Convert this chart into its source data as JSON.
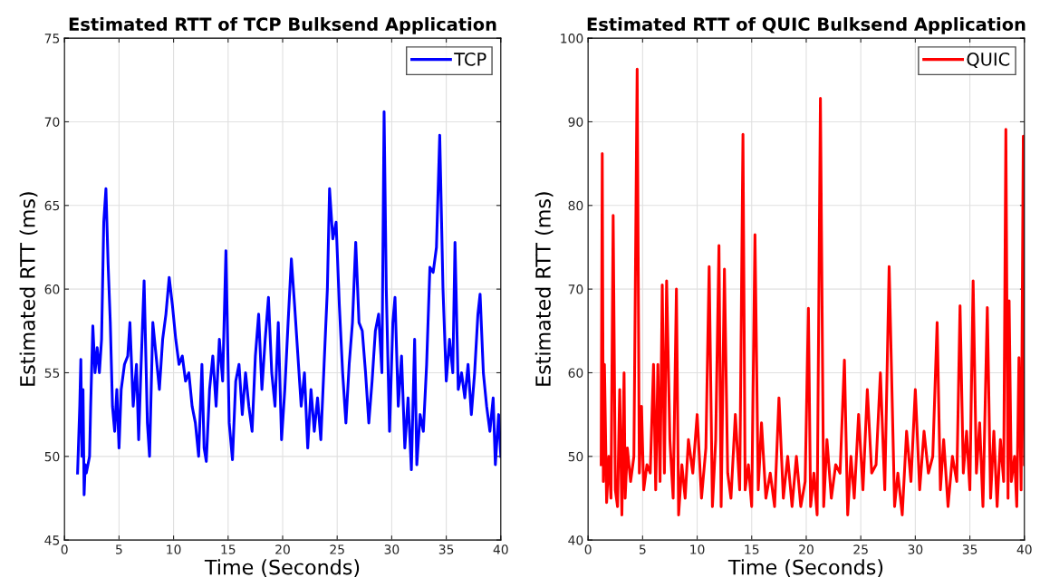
{
  "chart_data": [
    {
      "type": "line",
      "title": "Estimated RTT of TCP Bulksend Application",
      "xlabel": "Time (Seconds)",
      "ylabel": "Estimated RTT (ms)",
      "xlim": [
        0,
        40
      ],
      "xticks": [
        0,
        5,
        10,
        15,
        20,
        25,
        30,
        35,
        40
      ],
      "ylim": [
        45,
        75
      ],
      "yticks": [
        45,
        50,
        55,
        60,
        65,
        70,
        75
      ],
      "grid": true,
      "legend": "top right",
      "series": [
        {
          "name": "TCP",
          "color": "#0000ff",
          "x": [
            1.2,
            1.4,
            1.5,
            1.6,
            1.7,
            1.8,
            1.9,
            2.0,
            2.3,
            2.4,
            2.6,
            2.8,
            3.0,
            3.2,
            3.4,
            3.6,
            3.8,
            4.0,
            4.2,
            4.4,
            4.6,
            4.8,
            5.0,
            5.2,
            5.5,
            5.8,
            6.0,
            6.3,
            6.6,
            6.8,
            7.0,
            7.3,
            7.6,
            7.8,
            8.1,
            8.4,
            8.7,
            9.0,
            9.3,
            9.6,
            9.9,
            10.2,
            10.5,
            10.8,
            11.1,
            11.4,
            11.7,
            12.0,
            12.3,
            12.6,
            12.8,
            13.0,
            13.3,
            13.6,
            13.9,
            14.2,
            14.5,
            14.8,
            15.1,
            15.4,
            15.7,
            16.0,
            16.3,
            16.6,
            16.9,
            17.2,
            17.5,
            17.8,
            18.1,
            18.4,
            18.7,
            19.0,
            19.3,
            19.6,
            19.9,
            20.2,
            20.5,
            20.8,
            21.1,
            21.4,
            21.7,
            22.0,
            22.3,
            22.6,
            22.9,
            23.2,
            23.5,
            23.8,
            24.1,
            24.3,
            24.6,
            24.9,
            25.2,
            25.5,
            25.8,
            26.1,
            26.4,
            26.7,
            27.0,
            27.3,
            27.6,
            27.9,
            28.2,
            28.5,
            28.8,
            29.1,
            29.3,
            29.5,
            29.8,
            30.1,
            30.3,
            30.6,
            30.9,
            31.2,
            31.5,
            31.8,
            32.1,
            32.3,
            32.6,
            32.9,
            33.2,
            33.5,
            33.8,
            34.1,
            34.4,
            34.7,
            35.0,
            35.3,
            35.6,
            35.8,
            36.1,
            36.4,
            36.7,
            37.0,
            37.3,
            37.6,
            37.9,
            38.1,
            38.4,
            38.7,
            39.0,
            39.3,
            39.5,
            39.8,
            40.0
          ],
          "values": [
            49,
            53,
            55.8,
            50,
            54,
            47.7,
            49.5,
            49,
            50,
            53,
            57.8,
            55,
            56.5,
            55,
            57,
            64,
            66,
            61.5,
            58,
            53,
            51.5,
            54,
            50.5,
            54,
            55.5,
            56,
            58,
            53,
            55.5,
            51,
            55,
            60.5,
            52,
            50,
            58,
            56,
            54,
            57,
            58.5,
            60.7,
            59,
            57,
            55.5,
            56,
            54.5,
            55,
            53,
            52,
            50,
            55.5,
            50.5,
            49.7,
            54,
            56,
            53,
            57,
            54.5,
            62.3,
            52,
            49.8,
            54.5,
            55.5,
            52.5,
            55,
            53,
            51.5,
            56,
            58.5,
            54,
            57,
            59.5,
            55,
            53,
            58,
            51,
            54,
            58,
            61.8,
            59,
            56,
            53,
            55,
            50.5,
            54,
            51.5,
            53.5,
            51,
            55.5,
            60,
            66,
            63,
            64,
            59,
            55,
            52,
            55.5,
            58,
            62.8,
            58,
            57.5,
            55,
            52,
            54.5,
            57.5,
            58.5,
            55,
            70.6,
            60,
            51.5,
            58,
            59.5,
            53,
            56,
            50.5,
            53.5,
            49.2,
            57,
            49.5,
            52.5,
            51.5,
            55.5,
            61.3,
            61,
            62.5,
            69.2,
            60,
            54.5,
            57,
            55,
            62.8,
            54,
            55,
            53.5,
            55.5,
            52.5,
            55,
            58.5,
            59.7,
            55,
            53,
            51.5,
            53.5,
            49.5,
            52.5,
            50
          ]
        }
      ]
    },
    {
      "type": "line",
      "title": "Estimated RTT of QUIC Bulksend Application",
      "xlabel": "Time (Seconds)",
      "ylabel": "Estimated RTT (ms)",
      "xlim": [
        0,
        40
      ],
      "xticks": [
        0,
        5,
        10,
        15,
        20,
        25,
        30,
        35,
        40
      ],
      "ylim": [
        40,
        100
      ],
      "yticks": [
        40,
        50,
        60,
        70,
        80,
        90,
        100
      ],
      "grid": true,
      "legend": "top right",
      "series": [
        {
          "name": "QUIC",
          "color": "#ff0000",
          "x": [
            1.2,
            1.3,
            1.4,
            1.5,
            1.7,
            1.9,
            2.1,
            2.3,
            2.5,
            2.7,
            2.9,
            3.1,
            3.3,
            3.4,
            3.6,
            3.9,
            4.2,
            4.5,
            4.7,
            4.9,
            5.1,
            5.4,
            5.7,
            6.0,
            6.2,
            6.4,
            6.6,
            6.8,
            7.0,
            7.2,
            7.5,
            7.8,
            8.1,
            8.3,
            8.6,
            8.9,
            9.2,
            9.6,
            10.0,
            10.4,
            10.8,
            11.1,
            11.4,
            11.7,
            12.0,
            12.2,
            12.5,
            12.8,
            13.1,
            13.5,
            13.9,
            14.2,
            14.4,
            14.7,
            15.0,
            15.3,
            15.6,
            15.9,
            16.3,
            16.7,
            17.1,
            17.5,
            17.9,
            18.3,
            18.7,
            19.1,
            19.5,
            19.9,
            20.2,
            20.4,
            20.7,
            21.0,
            21.3,
            21.6,
            21.9,
            22.3,
            22.7,
            23.1,
            23.5,
            23.8,
            24.1,
            24.4,
            24.8,
            25.2,
            25.6,
            26.0,
            26.4,
            26.8,
            27.2,
            27.6,
            28.1,
            28.4,
            28.8,
            29.2,
            29.6,
            30.0,
            30.4,
            30.8,
            31.2,
            31.6,
            32.0,
            32.3,
            32.6,
            33.0,
            33.4,
            33.8,
            34.1,
            34.4,
            34.7,
            35.0,
            35.3,
            35.6,
            35.9,
            36.2,
            36.6,
            36.9,
            37.2,
            37.5,
            37.8,
            38.1,
            38.3,
            38.5,
            38.6,
            38.8,
            39.1,
            39.3,
            39.5,
            39.7,
            39.9,
            40.0
          ],
          "values": [
            49,
            86.2,
            47,
            61,
            44.5,
            50,
            45,
            78.8,
            46,
            44,
            58,
            43,
            60,
            45,
            51,
            47,
            50,
            96.3,
            48,
            56,
            46,
            49,
            48,
            61,
            46,
            61,
            47,
            70.5,
            48,
            71,
            52,
            45,
            70,
            43,
            49,
            45,
            52,
            48,
            55,
            45,
            51,
            72.7,
            44,
            52,
            75.2,
            44,
            72.4,
            48,
            45,
            55,
            46,
            88.5,
            46,
            49,
            44,
            76.5,
            46,
            54,
            45,
            48,
            44,
            57,
            45,
            50,
            44,
            50,
            44,
            47,
            67.7,
            44,
            48,
            43,
            92.8,
            44,
            52,
            45,
            49,
            48,
            61.5,
            43,
            50,
            45,
            55,
            46,
            58,
            48,
            49,
            60,
            46,
            72.7,
            44,
            48,
            43,
            53,
            47,
            58,
            46,
            53,
            48,
            50,
            66,
            46,
            52,
            44,
            50,
            47,
            68,
            48,
            53,
            46,
            71,
            48,
            54,
            44,
            67.8,
            45,
            53,
            44,
            52,
            47,
            89.1,
            45,
            68.6,
            47,
            50,
            44,
            61.8,
            46,
            88.3,
            49
          ]
        }
      ]
    }
  ]
}
